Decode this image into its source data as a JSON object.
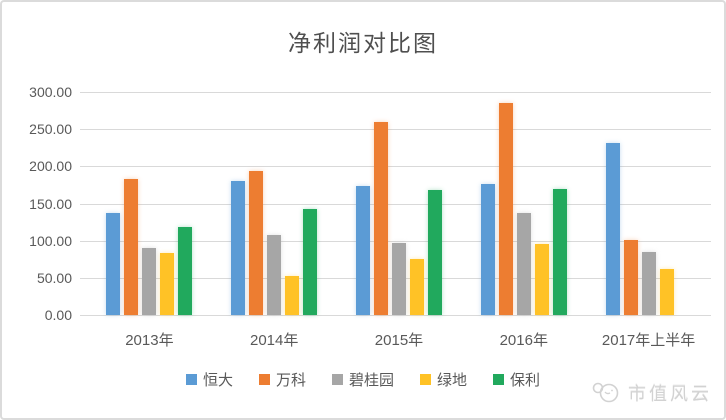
{
  "chart_data": {
    "type": "bar",
    "title": "净利润对比图",
    "categories": [
      "2013年",
      "2014年",
      "2015年",
      "2016年",
      "2017年上半年"
    ],
    "series": [
      {
        "name": "恒大",
        "color": "#5B9BD5",
        "values": [
          137,
          180,
          173,
          176,
          232
        ]
      },
      {
        "name": "万科",
        "color": "#ED7D31",
        "values": [
          183,
          194,
          260,
          285,
          101
        ]
      },
      {
        "name": "碧桂园",
        "color": "#A6A6A6",
        "values": [
          90,
          107,
          97,
          137,
          85
        ]
      },
      {
        "name": "绿地",
        "color": "#FFC226",
        "values": [
          83,
          53,
          75,
          95,
          62
        ]
      },
      {
        "name": "保利",
        "color": "#21A95D",
        "values": [
          119,
          143,
          168,
          170,
          null
        ]
      }
    ],
    "xlabel": "",
    "ylabel": "",
    "ylim": [
      0,
      300
    ],
    "ytick_labels": [
      "300.00",
      "250.00",
      "200.00",
      "150.00",
      "100.00",
      "50.00",
      "0.00"
    ],
    "grid": true,
    "gridline_color": "#d9d9d9",
    "axis_text_color": "#595959",
    "legend_position": "bottom"
  },
  "watermark": {
    "text": "市值风云",
    "logo": "cloud-mascot-icon",
    "color": "#d2d2d2"
  }
}
